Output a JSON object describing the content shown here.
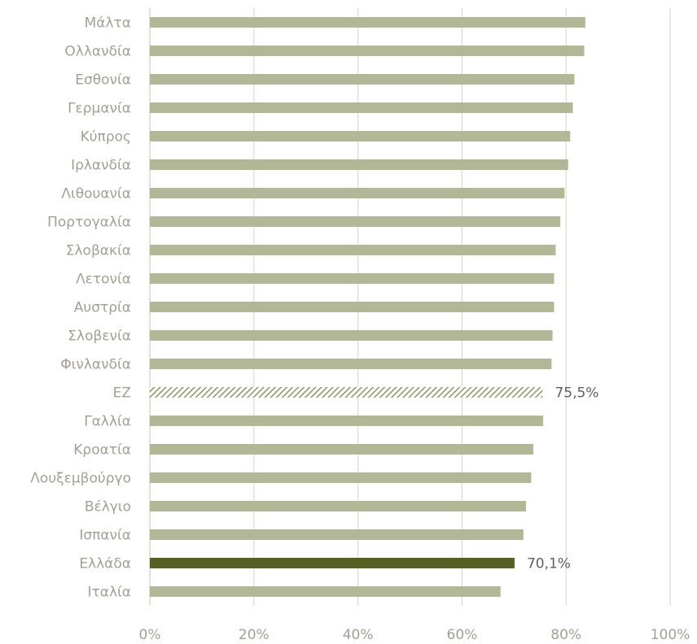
{
  "chart_data": {
    "type": "bar",
    "orientation": "horizontal",
    "categories": [
      "Μάλτα",
      "Ολλανδία",
      "Εσθονία",
      "Γερμανία",
      "Κύπρος",
      "Ιρλανδία",
      "Λιθουανία",
      "Πορτογαλία",
      "Σλοβακία",
      "Λετονία",
      "Αυστρία",
      "Σλοβενία",
      "Φινλανδία",
      "ΕΖ",
      "Γαλλία",
      "Κροατία",
      "Λουξεμβούργο",
      "Βέλγιο",
      "Ισπανία",
      "Ελλάδα",
      "Ιταλία"
    ],
    "values": [
      83.7,
      83.5,
      81.6,
      81.3,
      80.8,
      80.4,
      79.7,
      78.9,
      78.0,
      77.7,
      77.7,
      77.4,
      77.2,
      75.5,
      75.6,
      73.7,
      73.3,
      72.3,
      71.8,
      70.1,
      67.4
    ],
    "bar_styles": [
      "normal",
      "normal",
      "normal",
      "normal",
      "normal",
      "normal",
      "normal",
      "normal",
      "normal",
      "normal",
      "normal",
      "normal",
      "normal",
      "hatched",
      "normal",
      "normal",
      "normal",
      "normal",
      "normal",
      "highlight",
      "normal"
    ],
    "data_labels": [
      {
        "category": "ΕΖ",
        "text": "75,5%"
      },
      {
        "category": "Ελλάδα",
        "text": "70,1%"
      }
    ],
    "xlim": [
      0,
      100
    ],
    "x_ticks": [
      "0%",
      "20%",
      "40%",
      "60%",
      "80%",
      "100%"
    ],
    "x_tick_values": [
      0,
      20,
      40,
      60,
      80,
      100
    ],
    "grid": true,
    "colors": {
      "normal": "#b1b797",
      "highlight": "#566024",
      "hatched": "#8c9468",
      "grid": "#d8dccb",
      "label": "#a39f95"
    }
  }
}
